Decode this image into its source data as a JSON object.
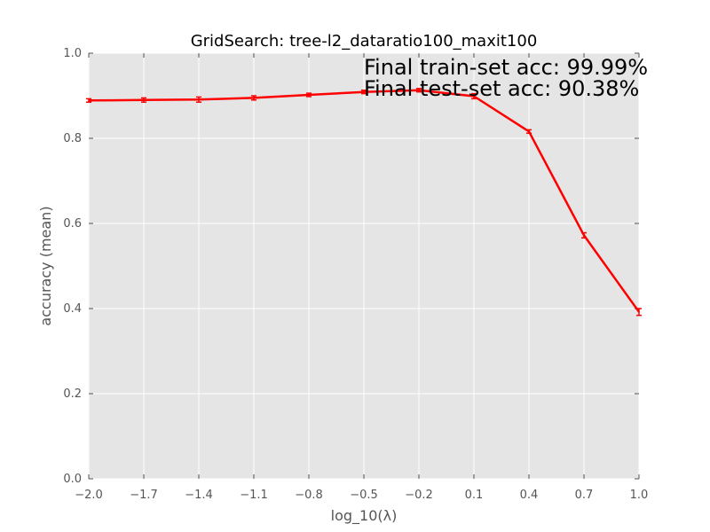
{
  "chart_data": {
    "type": "line",
    "title": "GridSearch: tree-l2_dataratio100_maxit100",
    "xlabel": "log_10(λ)",
    "ylabel": "accuracy (mean)",
    "xlim": [
      -2.0,
      1.0
    ],
    "ylim": [
      0.0,
      1.0
    ],
    "xticks": [
      "−2.0",
      "−1.7",
      "−1.4",
      "−1.1",
      "−0.8",
      "−0.5",
      "−0.2",
      "0.1",
      "0.4",
      "0.7",
      "1.0"
    ],
    "yticks": [
      "0.0",
      "0.2",
      "0.4",
      "0.6",
      "0.8",
      "1.0"
    ],
    "grid": true,
    "series": [
      {
        "color": "#ff0000",
        "x": [
          -2.0,
          -1.7,
          -1.4,
          -1.1,
          -0.8,
          -0.5,
          -0.2,
          0.1,
          0.4,
          0.7,
          1.0
        ],
        "y": [
          0.889,
          0.89,
          0.891,
          0.895,
          0.902,
          0.909,
          0.913,
          0.899,
          0.816,
          0.572,
          0.392
        ],
        "error": [
          0.004,
          0.005,
          0.006,
          0.005,
          0.004,
          0.004,
          0.004,
          0.006,
          0.004,
          0.006,
          0.008
        ]
      }
    ],
    "annotations": [
      "Final train-set acc: 99.99%",
      "Final test-set acc: 90.38%"
    ]
  }
}
